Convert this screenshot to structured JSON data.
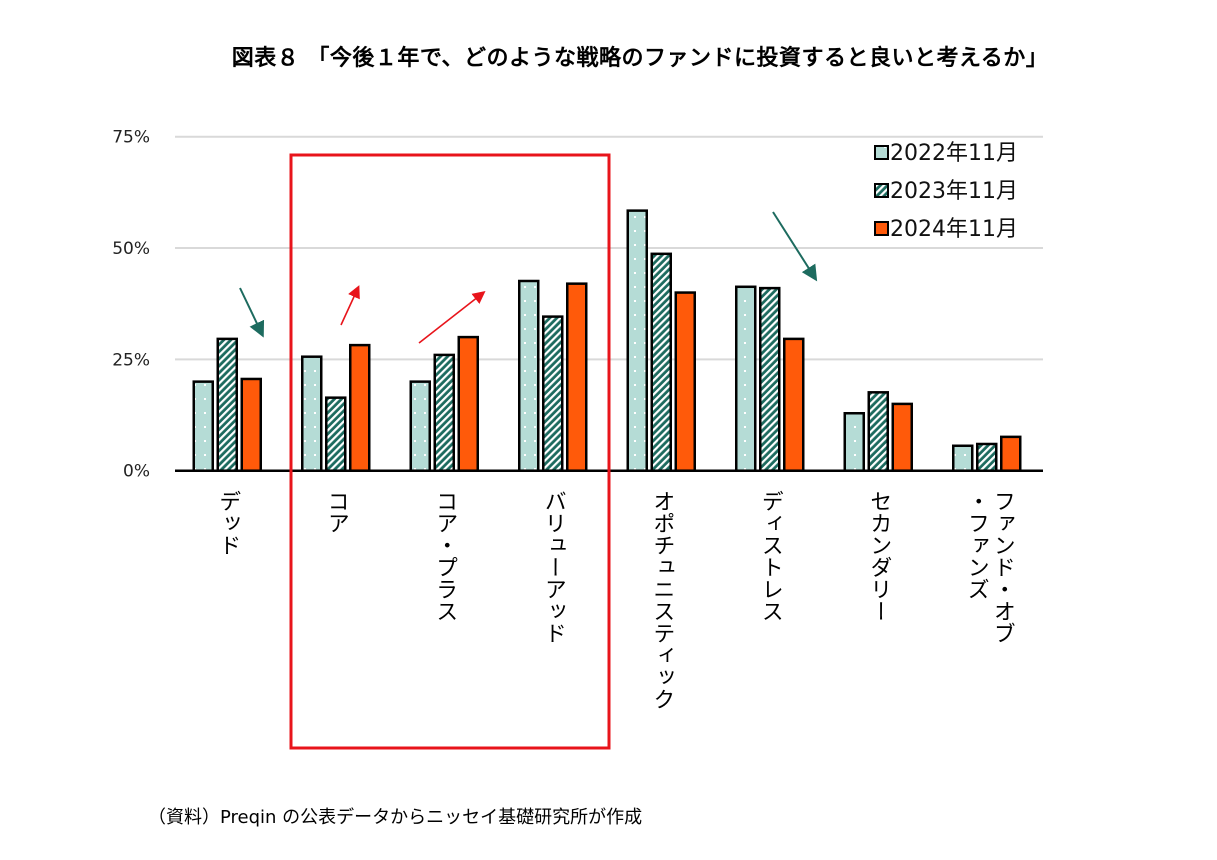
{
  "title": "図表８ 「今後１年で、どのようなの戦略のファンドに投資すると良いと考えるか」",
  "source": "（資料）Preqin の公表データからニッセイ基礎研究所が作成",
  "chart_data": {
    "type": "bar",
    "title": "図表８ 「今後１年で、どのような戦略のファンドに投資すると良いと考えるか」",
    "categories": [
      "デッド",
      "コア",
      "コア・プラス",
      "バリューアッド",
      "オポチュニスティック",
      "ディストレス",
      "セカンダリー",
      "ファンド・オブ\n・ファンズ"
    ],
    "series": [
      {
        "name": "2022年11月",
        "values": [
          20.0,
          25.6,
          20.0,
          42.6,
          58.4,
          41.3,
          12.9,
          5.6
        ],
        "color": "#b5dcd6",
        "pattern": "dots"
      },
      {
        "name": "2023年11月",
        "values": [
          29.6,
          16.4,
          26.0,
          34.6,
          48.7,
          41.0,
          17.6,
          6.0
        ],
        "color": "#1d6b5f",
        "pattern": "diagonal-stripes"
      },
      {
        "name": "2024年11月",
        "values": [
          20.6,
          28.2,
          30.0,
          42.0,
          40.0,
          29.6,
          15.0,
          7.6
        ],
        "color": "#ff5a0a",
        "pattern": "solid"
      }
    ],
    "ylim": [
      0,
      75
    ],
    "yticks": [
      "0%",
      "25%",
      "50%",
      "75%"
    ],
    "ytick_values": [
      0,
      25,
      50,
      75
    ],
    "grid": true,
    "legend": "top-right",
    "highlight_box": {
      "categories": [
        "コア",
        "コア・プラス",
        "バリューアッド"
      ],
      "color": "#e8141b"
    },
    "annotations": [
      {
        "type": "arrow",
        "direction": "down",
        "category": "デッド",
        "color": "#1d6b5f"
      },
      {
        "type": "arrow",
        "direction": "up",
        "category": "コア",
        "color": "#e8141b"
      },
      {
        "type": "arrow",
        "direction": "up",
        "category": "コア・プラス",
        "color": "#e8141b"
      },
      {
        "type": "arrow",
        "direction": "down",
        "category": "ディストレス",
        "color": "#1d6b5f"
      }
    ]
  }
}
